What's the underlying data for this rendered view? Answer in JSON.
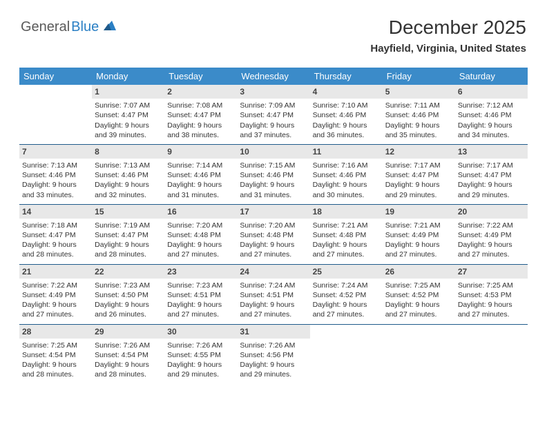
{
  "logo": {
    "text1": "General",
    "text2": "Blue"
  },
  "title": "December 2025",
  "location": "Hayfield, Virginia, United States",
  "colors": {
    "header_bg": "#3b8bc9",
    "header_text": "#ffffff",
    "week_border": "#1f5a8a",
    "daynum_bg": "#e8e8e8",
    "logo_gray": "#5a5a5a",
    "logo_blue": "#2a7fc4"
  },
  "weekdays": [
    "Sunday",
    "Monday",
    "Tuesday",
    "Wednesday",
    "Thursday",
    "Friday",
    "Saturday"
  ],
  "weeks": [
    [
      {
        "empty": true
      },
      {
        "n": "1",
        "sunrise": "7:07 AM",
        "sunset": "4:47 PM",
        "dl1": "Daylight: 9 hours",
        "dl2": "and 39 minutes."
      },
      {
        "n": "2",
        "sunrise": "7:08 AM",
        "sunset": "4:47 PM",
        "dl1": "Daylight: 9 hours",
        "dl2": "and 38 minutes."
      },
      {
        "n": "3",
        "sunrise": "7:09 AM",
        "sunset": "4:47 PM",
        "dl1": "Daylight: 9 hours",
        "dl2": "and 37 minutes."
      },
      {
        "n": "4",
        "sunrise": "7:10 AM",
        "sunset": "4:46 PM",
        "dl1": "Daylight: 9 hours",
        "dl2": "and 36 minutes."
      },
      {
        "n": "5",
        "sunrise": "7:11 AM",
        "sunset": "4:46 PM",
        "dl1": "Daylight: 9 hours",
        "dl2": "and 35 minutes."
      },
      {
        "n": "6",
        "sunrise": "7:12 AM",
        "sunset": "4:46 PM",
        "dl1": "Daylight: 9 hours",
        "dl2": "and 34 minutes."
      }
    ],
    [
      {
        "n": "7",
        "sunrise": "7:13 AM",
        "sunset": "4:46 PM",
        "dl1": "Daylight: 9 hours",
        "dl2": "and 33 minutes."
      },
      {
        "n": "8",
        "sunrise": "7:13 AM",
        "sunset": "4:46 PM",
        "dl1": "Daylight: 9 hours",
        "dl2": "and 32 minutes."
      },
      {
        "n": "9",
        "sunrise": "7:14 AM",
        "sunset": "4:46 PM",
        "dl1": "Daylight: 9 hours",
        "dl2": "and 31 minutes."
      },
      {
        "n": "10",
        "sunrise": "7:15 AM",
        "sunset": "4:46 PM",
        "dl1": "Daylight: 9 hours",
        "dl2": "and 31 minutes."
      },
      {
        "n": "11",
        "sunrise": "7:16 AM",
        "sunset": "4:46 PM",
        "dl1": "Daylight: 9 hours",
        "dl2": "and 30 minutes."
      },
      {
        "n": "12",
        "sunrise": "7:17 AM",
        "sunset": "4:47 PM",
        "dl1": "Daylight: 9 hours",
        "dl2": "and 29 minutes."
      },
      {
        "n": "13",
        "sunrise": "7:17 AM",
        "sunset": "4:47 PM",
        "dl1": "Daylight: 9 hours",
        "dl2": "and 29 minutes."
      }
    ],
    [
      {
        "n": "14",
        "sunrise": "7:18 AM",
        "sunset": "4:47 PM",
        "dl1": "Daylight: 9 hours",
        "dl2": "and 28 minutes."
      },
      {
        "n": "15",
        "sunrise": "7:19 AM",
        "sunset": "4:47 PM",
        "dl1": "Daylight: 9 hours",
        "dl2": "and 28 minutes."
      },
      {
        "n": "16",
        "sunrise": "7:20 AM",
        "sunset": "4:48 PM",
        "dl1": "Daylight: 9 hours",
        "dl2": "and 27 minutes."
      },
      {
        "n": "17",
        "sunrise": "7:20 AM",
        "sunset": "4:48 PM",
        "dl1": "Daylight: 9 hours",
        "dl2": "and 27 minutes."
      },
      {
        "n": "18",
        "sunrise": "7:21 AM",
        "sunset": "4:48 PM",
        "dl1": "Daylight: 9 hours",
        "dl2": "and 27 minutes."
      },
      {
        "n": "19",
        "sunrise": "7:21 AM",
        "sunset": "4:49 PM",
        "dl1": "Daylight: 9 hours",
        "dl2": "and 27 minutes."
      },
      {
        "n": "20",
        "sunrise": "7:22 AM",
        "sunset": "4:49 PM",
        "dl1": "Daylight: 9 hours",
        "dl2": "and 27 minutes."
      }
    ],
    [
      {
        "n": "21",
        "sunrise": "7:22 AM",
        "sunset": "4:49 PM",
        "dl1": "Daylight: 9 hours",
        "dl2": "and 27 minutes."
      },
      {
        "n": "22",
        "sunrise": "7:23 AM",
        "sunset": "4:50 PM",
        "dl1": "Daylight: 9 hours",
        "dl2": "and 26 minutes."
      },
      {
        "n": "23",
        "sunrise": "7:23 AM",
        "sunset": "4:51 PM",
        "dl1": "Daylight: 9 hours",
        "dl2": "and 27 minutes."
      },
      {
        "n": "24",
        "sunrise": "7:24 AM",
        "sunset": "4:51 PM",
        "dl1": "Daylight: 9 hours",
        "dl2": "and 27 minutes."
      },
      {
        "n": "25",
        "sunrise": "7:24 AM",
        "sunset": "4:52 PM",
        "dl1": "Daylight: 9 hours",
        "dl2": "and 27 minutes."
      },
      {
        "n": "26",
        "sunrise": "7:25 AM",
        "sunset": "4:52 PM",
        "dl1": "Daylight: 9 hours",
        "dl2": "and 27 minutes."
      },
      {
        "n": "27",
        "sunrise": "7:25 AM",
        "sunset": "4:53 PM",
        "dl1": "Daylight: 9 hours",
        "dl2": "and 27 minutes."
      }
    ],
    [
      {
        "n": "28",
        "sunrise": "7:25 AM",
        "sunset": "4:54 PM",
        "dl1": "Daylight: 9 hours",
        "dl2": "and 28 minutes."
      },
      {
        "n": "29",
        "sunrise": "7:26 AM",
        "sunset": "4:54 PM",
        "dl1": "Daylight: 9 hours",
        "dl2": "and 28 minutes."
      },
      {
        "n": "30",
        "sunrise": "7:26 AM",
        "sunset": "4:55 PM",
        "dl1": "Daylight: 9 hours",
        "dl2": "and 29 minutes."
      },
      {
        "n": "31",
        "sunrise": "7:26 AM",
        "sunset": "4:56 PM",
        "dl1": "Daylight: 9 hours",
        "dl2": "and 29 minutes."
      },
      {
        "empty": true
      },
      {
        "empty": true
      },
      {
        "empty": true
      }
    ]
  ]
}
